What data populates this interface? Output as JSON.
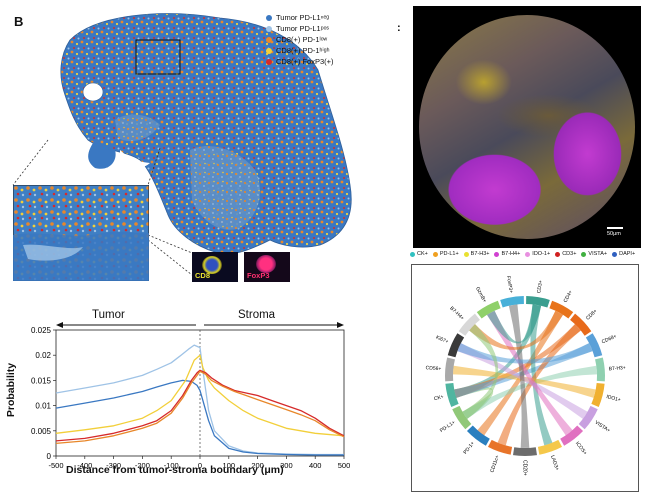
{
  "panel_b": {
    "letter": "B",
    "legend": [
      {
        "label": "Tumor PD-L1ⁿᵉᵍ",
        "color": "#3a78c2"
      },
      {
        "label": "Tumor PD-L1ᵖᵒˢ",
        "color": "#9fc3e6"
      },
      {
        "label": "CD8(+) PD-1ˡᵒʷ",
        "color": "#e8872a"
      },
      {
        "label": "CD8(+) PD-1ʰⁱᵍʰ",
        "color": "#f2cf3a"
      },
      {
        "label": "CD8(+) FoxP3(+)",
        "color": "#d62a2a"
      }
    ],
    "cell_labels": {
      "cd8": "CD8",
      "foxp3": "FoxP3"
    },
    "region_tumor": "Tumor",
    "region_stroma": "Stroma"
  },
  "panel_c": {
    "letter": ":",
    "scale_label": "50μm",
    "legend": [
      {
        "label": "CK+",
        "color": "#30c0c0"
      },
      {
        "label": "PD-L1+",
        "color": "#f0a020"
      },
      {
        "label": "B7-H3+",
        "color": "#e8e030"
      },
      {
        "label": "B7-H4+",
        "color": "#d040d0"
      },
      {
        "label": "IDO-1+",
        "color": "#e890e0"
      },
      {
        "label": "CD3+",
        "color": "#d02020"
      },
      {
        "label": "VISTA+",
        "color": "#40b040"
      },
      {
        "label": "DAPI+",
        "color": "#3060c0"
      }
    ]
  },
  "chord": {
    "labels": [
      "CD3+",
      "CD4+",
      "CD8+",
      "CD68+",
      "B7-H3+",
      "IDO1+",
      "VISTA+",
      "ICOS+",
      "LAG3+",
      "CD20+",
      "CD11c+",
      "PD-1+",
      "PD-L1+",
      "CK+",
      "CD56+",
      "Ki67+",
      "B7-H4+",
      "GzmB+",
      "FoxP3+"
    ],
    "arc_colors": [
      "#3a9e8f",
      "#e8731a",
      "#e86a1a",
      "#5aa0d8",
      "#8fd0b0",
      "#f0b030",
      "#c8a0e0",
      "#e070c0",
      "#f5c84a",
      "#6c6c6c",
      "#e8742a",
      "#2a7fbf",
      "#90c878",
      "#4fb5a0",
      "#a9a9a9",
      "#3a3a3a",
      "#d8d8d8",
      "#8fd06a",
      "#48b0d8"
    ]
  },
  "chart_data": {
    "type": "line",
    "title": "",
    "xlabel": "Distance from tumor-stroma boundary (μm)",
    "ylabel": "Probability",
    "xlim": [
      -500,
      500
    ],
    "ylim": [
      0,
      0.025
    ],
    "xticks": [
      -500,
      -400,
      -300,
      -200,
      -100,
      0,
      100,
      200,
      300,
      400,
      500
    ],
    "yticks": [
      0,
      0.005,
      0.01,
      0.015,
      0.02,
      0.025
    ],
    "series": [
      {
        "color": "#9fc3e6",
        "x": [
          -500,
          -400,
          -300,
          -200,
          -150,
          -100,
          -70,
          -40,
          -20,
          0,
          10,
          30,
          50,
          100,
          150,
          200,
          300,
          400,
          500
        ],
        "y": [
          0.0125,
          0.0135,
          0.0145,
          0.016,
          0.0172,
          0.0185,
          0.0198,
          0.0212,
          0.022,
          0.0215,
          0.017,
          0.009,
          0.005,
          0.002,
          0.001,
          0.0006,
          0.0004,
          0.0003,
          0.0003
        ]
      },
      {
        "color": "#3a78c2",
        "x": [
          -500,
          -400,
          -300,
          -200,
          -150,
          -100,
          -60,
          -30,
          -10,
          0,
          10,
          30,
          50,
          100,
          150,
          200,
          300,
          400,
          500
        ],
        "y": [
          0.0095,
          0.0105,
          0.0115,
          0.0128,
          0.0137,
          0.0145,
          0.015,
          0.0148,
          0.014,
          0.013,
          0.011,
          0.007,
          0.004,
          0.0015,
          0.0008,
          0.0005,
          0.0003,
          0.0002,
          0.0002
        ]
      },
      {
        "color": "#f2cf3a",
        "x": [
          -500,
          -400,
          -300,
          -200,
          -150,
          -100,
          -50,
          -20,
          0,
          10,
          30,
          50,
          100,
          150,
          200,
          300,
          400,
          500
        ],
        "y": [
          0.0045,
          0.0052,
          0.006,
          0.0075,
          0.009,
          0.011,
          0.015,
          0.019,
          0.02,
          0.0175,
          0.015,
          0.0135,
          0.011,
          0.009,
          0.0075,
          0.0055,
          0.0045,
          0.004
        ]
      },
      {
        "color": "#d62a2a",
        "x": [
          -500,
          -400,
          -300,
          -200,
          -150,
          -100,
          -60,
          -30,
          -10,
          0,
          20,
          40,
          80,
          120,
          160,
          200,
          250,
          300,
          350,
          400,
          450,
          500
        ],
        "y": [
          0.003,
          0.0035,
          0.0045,
          0.006,
          0.007,
          0.009,
          0.012,
          0.015,
          0.0165,
          0.017,
          0.0165,
          0.0155,
          0.014,
          0.013,
          0.0125,
          0.012,
          0.011,
          0.01,
          0.009,
          0.0075,
          0.0055,
          0.004
        ]
      },
      {
        "color": "#e8872a",
        "x": [
          -500,
          -400,
          -300,
          -200,
          -150,
          -100,
          -60,
          -30,
          -10,
          0,
          20,
          40,
          80,
          120,
          160,
          200,
          250,
          300,
          350,
          400,
          450,
          500
        ],
        "y": [
          0.0025,
          0.003,
          0.004,
          0.0055,
          0.0065,
          0.0085,
          0.0115,
          0.0145,
          0.016,
          0.0168,
          0.0162,
          0.015,
          0.0138,
          0.0128,
          0.012,
          0.0112,
          0.0102,
          0.0092,
          0.0082,
          0.007,
          0.0052,
          0.0038
        ]
      }
    ]
  }
}
